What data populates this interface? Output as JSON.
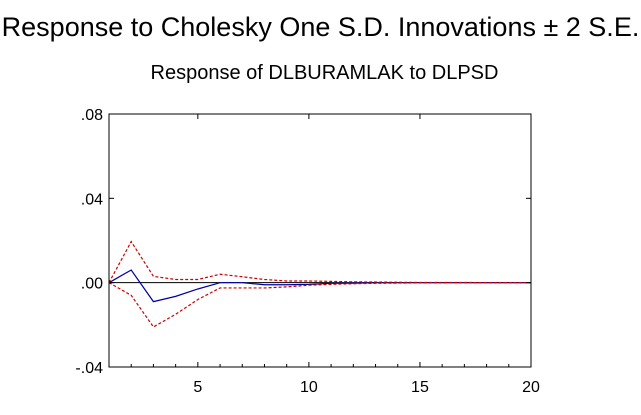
{
  "chart_data": {
    "type": "line",
    "title": "Response to Cholesky One S.D. Innovations ± 2 S.E.",
    "subtitle": "Response of DLBURAMLAK to DLPSD",
    "xlabel": "",
    "ylabel": "",
    "xlim": [
      1,
      20
    ],
    "ylim": [
      -0.04,
      0.08
    ],
    "x_ticks": [
      5,
      10,
      15,
      20
    ],
    "x_tick_labels": [
      "5",
      "10",
      "15",
      "20"
    ],
    "y_ticks": [
      -0.04,
      0.0,
      0.04,
      0.08
    ],
    "y_tick_labels": [
      "-.04",
      ".00",
      ".04",
      ".08"
    ],
    "grid": false,
    "x": [
      1,
      2,
      3,
      4,
      5,
      6,
      7,
      8,
      9,
      10,
      11,
      12,
      13,
      14,
      15,
      16,
      17,
      18,
      19,
      20
    ],
    "series": [
      {
        "role": "response",
        "color": "#0000a0",
        "style": "solid",
        "values": [
          0.0,
          0.006,
          -0.009,
          -0.0065,
          -0.003,
          0.0,
          0.0,
          -0.001,
          -0.001,
          -0.0008,
          -0.0003,
          -0.0002,
          0.0,
          0.0,
          0.0,
          0.0,
          0.0,
          0.0,
          0.0,
          0.0
        ]
      },
      {
        "role": "upper band",
        "color": "#cc0000",
        "style": "dashed",
        "values": [
          0.0,
          0.0195,
          0.003,
          0.0015,
          0.0015,
          0.004,
          0.0028,
          0.0015,
          0.0008,
          0.0008,
          0.0006,
          0.0004,
          0.0003,
          0.0002,
          0.0001,
          0.0001,
          0.0001,
          0.0,
          0.0,
          0.0
        ]
      },
      {
        "role": "lower band",
        "color": "#cc0000",
        "style": "dashed",
        "values": [
          0.0,
          -0.006,
          -0.021,
          -0.015,
          -0.008,
          -0.0025,
          -0.0025,
          -0.0025,
          -0.002,
          -0.0012,
          -0.0008,
          -0.0005,
          -0.0003,
          -0.0002,
          -0.0001,
          -0.0001,
          0.0,
          0.0,
          0.0,
          0.0
        ]
      }
    ]
  }
}
